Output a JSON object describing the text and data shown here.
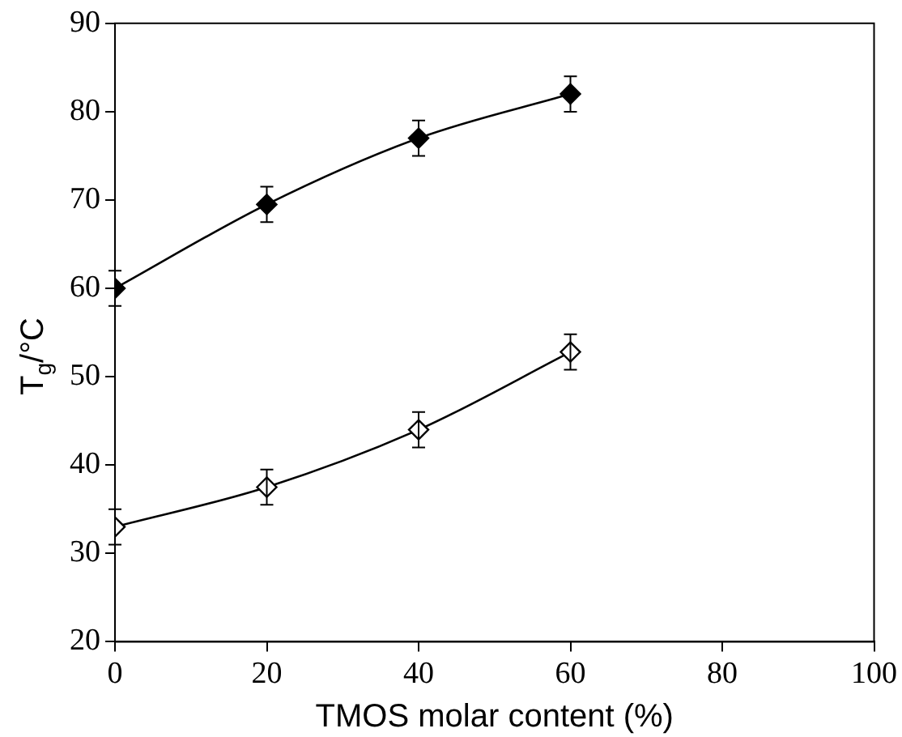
{
  "chart_data": {
    "type": "line",
    "xlabel": "TMOS molar content (%)",
    "ylabel": "T$_{g}$/°C",
    "x": [
      0,
      20,
      40,
      60
    ],
    "series": [
      {
        "color": "#000000",
        "values": [
          60,
          69.5,
          77,
          82
        ],
        "errors": [
          2,
          2,
          2,
          2
        ]
      },
      {
        "color": "#000000",
        "values": [
          33,
          37.5,
          44,
          52.8
        ],
        "errors": [
          2,
          2,
          2,
          2
        ]
      }
    ],
    "xlim": [
      0,
      100
    ],
    "xticks": [
      0,
      20,
      40,
      60,
      80,
      100
    ],
    "ylim": [
      20,
      90
    ],
    "yticks": [
      20,
      30,
      40,
      50,
      60,
      70,
      80,
      90
    ],
    "marker": "diamond",
    "line_style": "solid",
    "grid": false,
    "legend": false
  }
}
